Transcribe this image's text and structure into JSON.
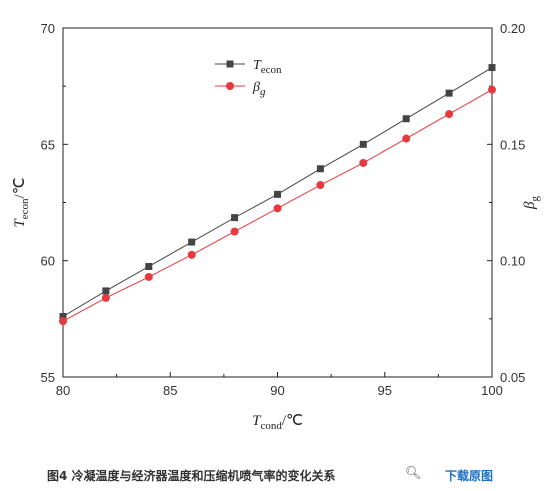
{
  "chart_data": {
    "type": "line",
    "x": [
      80,
      82,
      84,
      86,
      88,
      90,
      92,
      94,
      96,
      98,
      100
    ],
    "xlabel": {
      "main": "T",
      "sub": "cond",
      "unit": "/℃"
    },
    "xlim": [
      80,
      100
    ],
    "xticks": [
      80,
      85,
      90,
      95,
      100
    ],
    "ylabel_left": {
      "main": "T",
      "sub": "econ",
      "unit": "/℃"
    },
    "ylim_left": [
      55,
      70
    ],
    "yticks_left": [
      55,
      60,
      65,
      70
    ],
    "ylabel_right": {
      "main": "β",
      "sub": "g"
    },
    "ylim_right": [
      0.05,
      0.2
    ],
    "yticks_right": [
      "0.05",
      "0.10",
      "0.15",
      "0.20"
    ],
    "series": [
      {
        "name": "T",
        "name_sub": "econ",
        "axis": "left",
        "marker": "square",
        "color": "#444444",
        "values": [
          57.6,
          58.7,
          59.75,
          60.8,
          61.85,
          62.85,
          63.95,
          65.0,
          66.1,
          67.2,
          68.3
        ]
      },
      {
        "name": "β",
        "name_sub": "g",
        "axis": "right",
        "marker": "circle",
        "color": "#e8383d",
        "values": [
          0.074,
          0.084,
          0.093,
          0.1025,
          0.1125,
          0.1225,
          0.1325,
          0.142,
          0.1525,
          0.163,
          0.1735
        ]
      }
    ],
    "legend_position": "top-left",
    "grid": false
  },
  "caption": {
    "text": "图4 冷凝温度与经济器温度和压缩机喷气率的变化关系",
    "download_label": "下载原图",
    "zoom_icon": "magnifier-icon"
  }
}
